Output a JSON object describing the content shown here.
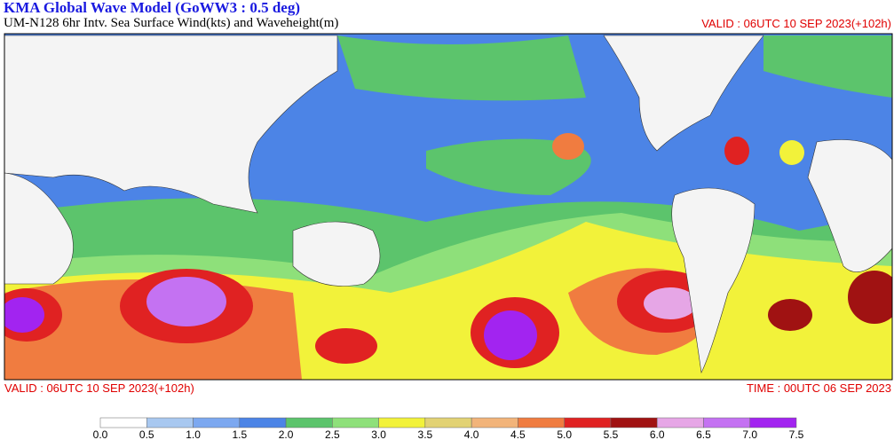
{
  "header": {
    "title": "KMA  Global Wave Model (GoWW3 : 0.5 deg)",
    "subtitle": "UM-N128  6hr Intv. Sea Surface Wind(kts) and Waveheight(m)",
    "valid_top": "VALID : 06UTC 10 SEP 2023(+102h)"
  },
  "footer": {
    "valid": "VALID : 06UTC 10 SEP 2023(+102h)",
    "time": "TIME : 00UTC 06 SEP 2023"
  },
  "colorbar": {
    "labels": [
      "0.0",
      "0.5",
      "1.0",
      "1.5",
      "2.0",
      "2.5",
      "3.0",
      "3.5",
      "4.0",
      "4.5",
      "5.0",
      "5.5",
      "6.0",
      "6.5",
      "7.0",
      "7.5"
    ],
    "colors": [
      "#ffffff",
      "#a8c8f0",
      "#7ca8f0",
      "#4c84e6",
      "#5cc46c",
      "#8ee07a",
      "#f2f23a",
      "#e2d274",
      "#f2b47a",
      "#f07c40",
      "#e02222",
      "#a01212",
      "#e6a6e6",
      "#c472f2",
      "#a224f0"
    ]
  }
}
